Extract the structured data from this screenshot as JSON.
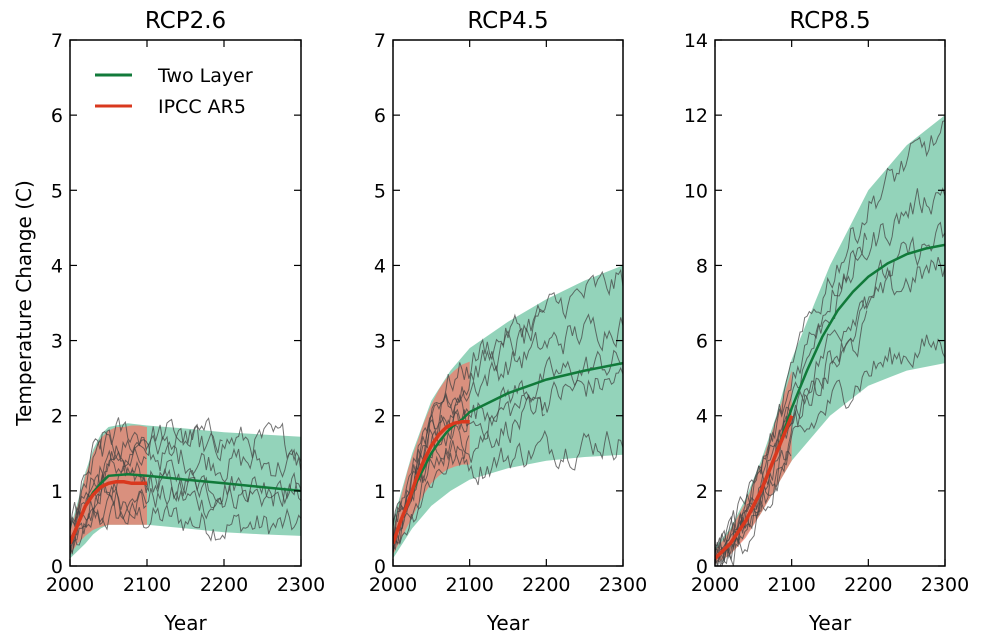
{
  "figure": {
    "ylabel": "Temperature Change (C)",
    "legend": {
      "placement": "upper-left of first panel",
      "items": [
        {
          "label": "Two Layer",
          "color": "#117a3a"
        },
        {
          "label": "IPCC AR5",
          "color": "#d9381e"
        }
      ]
    }
  },
  "colors": {
    "two_layer_line": "#117a3a",
    "two_layer_band": "#3aae82",
    "ipcc_line": "#d9381e",
    "ipcc_band": "#f07a6a",
    "model_runs": "#444444"
  },
  "chart_data": [
    {
      "type": "line",
      "title": "RCP2.6",
      "xlabel": "Year",
      "ylabel": "Temperature Change (C)",
      "xlim": [
        2000,
        2300
      ],
      "ylim": [
        0,
        7
      ],
      "xticks": [
        2000,
        2100,
        2200,
        2300
      ],
      "yticks": [
        0,
        1,
        2,
        3,
        4,
        5,
        6,
        7
      ],
      "series": [
        {
          "name": "Two Layer",
          "kind": "line",
          "x": [
            2000,
            2010,
            2020,
            2030,
            2040,
            2050,
            2075,
            2100,
            2150,
            2200,
            2250,
            2300
          ],
          "y": [
            0.3,
            0.55,
            0.8,
            0.98,
            1.1,
            1.2,
            1.22,
            1.2,
            1.15,
            1.1,
            1.05,
            1.0
          ]
        },
        {
          "name": "Two Layer",
          "kind": "band",
          "x": [
            2000,
            2010,
            2020,
            2030,
            2040,
            2050,
            2075,
            2100,
            2150,
            2200,
            2250,
            2300
          ],
          "lower": [
            0.1,
            0.2,
            0.3,
            0.42,
            0.5,
            0.55,
            0.55,
            0.55,
            0.5,
            0.45,
            0.42,
            0.4
          ],
          "upper": [
            0.5,
            0.85,
            1.25,
            1.55,
            1.75,
            1.85,
            1.9,
            1.87,
            1.83,
            1.78,
            1.75,
            1.72
          ]
        },
        {
          "name": "IPCC AR5",
          "kind": "line",
          "x": [
            2000,
            2010,
            2020,
            2030,
            2040,
            2050,
            2060,
            2070,
            2080,
            2090,
            2100
          ],
          "y": [
            0.3,
            0.55,
            0.8,
            0.95,
            1.05,
            1.1,
            1.12,
            1.12,
            1.1,
            1.1,
            1.1
          ]
        },
        {
          "name": "IPCC AR5",
          "kind": "band",
          "x": [
            2000,
            2010,
            2020,
            2030,
            2040,
            2050,
            2060,
            2070,
            2080,
            2090,
            2100
          ],
          "lower": [
            0.15,
            0.3,
            0.4,
            0.48,
            0.52,
            0.55,
            0.55,
            0.55,
            0.55,
            0.55,
            0.55
          ],
          "upper": [
            0.45,
            0.8,
            1.2,
            1.5,
            1.7,
            1.8,
            1.85,
            1.85,
            1.87,
            1.87,
            1.85
          ]
        }
      ]
    },
    {
      "type": "line",
      "title": "RCP4.5",
      "xlabel": "Year",
      "xlim": [
        2000,
        2300
      ],
      "ylim": [
        0,
        7
      ],
      "xticks": [
        2000,
        2100,
        2200,
        2300
      ],
      "yticks": [
        0,
        1,
        2,
        3,
        4,
        5,
        6,
        7
      ],
      "series": [
        {
          "name": "Two Layer",
          "kind": "line",
          "x": [
            2000,
            2010,
            2020,
            2030,
            2040,
            2050,
            2060,
            2070,
            2080,
            2090,
            2100,
            2150,
            2200,
            2250,
            2300
          ],
          "y": [
            0.3,
            0.6,
            0.85,
            1.1,
            1.3,
            1.5,
            1.65,
            1.78,
            1.88,
            1.95,
            2.05,
            2.3,
            2.48,
            2.6,
            2.7
          ]
        },
        {
          "name": "Two Layer",
          "kind": "band",
          "x": [
            2000,
            2025,
            2050,
            2075,
            2100,
            2150,
            2200,
            2250,
            2300
          ],
          "lower": [
            0.1,
            0.5,
            0.8,
            1.0,
            1.15,
            1.3,
            1.4,
            1.45,
            1.48
          ],
          "upper": [
            0.6,
            1.5,
            2.2,
            2.6,
            2.9,
            3.25,
            3.55,
            3.8,
            4.0
          ]
        },
        {
          "name": "IPCC AR5",
          "kind": "line",
          "x": [
            2000,
            2010,
            2020,
            2030,
            2040,
            2050,
            2060,
            2070,
            2080,
            2090,
            2100
          ],
          "y": [
            0.3,
            0.6,
            0.85,
            1.15,
            1.4,
            1.6,
            1.75,
            1.85,
            1.9,
            1.92,
            1.92
          ]
        },
        {
          "name": "IPCC AR5",
          "kind": "band",
          "x": [
            2000,
            2010,
            2020,
            2030,
            2040,
            2050,
            2060,
            2070,
            2080,
            2090,
            2100
          ],
          "lower": [
            0.15,
            0.35,
            0.55,
            0.75,
            0.95,
            1.1,
            1.2,
            1.28,
            1.32,
            1.35,
            1.35
          ],
          "upper": [
            0.45,
            0.9,
            1.3,
            1.6,
            1.9,
            2.15,
            2.35,
            2.5,
            2.6,
            2.68,
            2.72
          ]
        }
      ]
    },
    {
      "type": "line",
      "title": "RCP8.5",
      "xlabel": "Year",
      "xlim": [
        2000,
        2300
      ],
      "ylim": [
        0,
        14
      ],
      "xticks": [
        2000,
        2100,
        2200,
        2300
      ],
      "yticks": [
        0,
        2,
        4,
        6,
        8,
        10,
        12,
        14
      ],
      "series": [
        {
          "name": "Two Layer",
          "kind": "line",
          "x": [
            2000,
            2020,
            2040,
            2060,
            2080,
            2100,
            2120,
            2140,
            2160,
            2180,
            2200,
            2225,
            2250,
            2275,
            2300
          ],
          "y": [
            0.2,
            0.6,
            1.2,
            2.0,
            3.0,
            4.2,
            5.2,
            6.1,
            6.8,
            7.3,
            7.7,
            8.05,
            8.3,
            8.45,
            8.55
          ]
        },
        {
          "name": "Two Layer",
          "kind": "band",
          "x": [
            2000,
            2020,
            2040,
            2060,
            2080,
            2100,
            2150,
            2200,
            2250,
            2300
          ],
          "lower": [
            0.05,
            0.3,
            0.8,
            1.4,
            2.1,
            2.8,
            4.0,
            4.8,
            5.2,
            5.4
          ],
          "upper": [
            0.5,
            1.0,
            1.8,
            2.8,
            4.0,
            5.5,
            8.0,
            10.0,
            11.2,
            12.0
          ]
        },
        {
          "name": "IPCC AR5",
          "kind": "line",
          "x": [
            2000,
            2020,
            2040,
            2060,
            2080,
            2100
          ],
          "y": [
            0.2,
            0.6,
            1.2,
            2.0,
            3.0,
            4.0
          ]
        },
        {
          "name": "IPCC AR5",
          "kind": "band",
          "x": [
            2000,
            2020,
            2040,
            2060,
            2080,
            2100
          ],
          "lower": [
            0.05,
            0.3,
            0.75,
            1.4,
            2.1,
            2.8
          ],
          "upper": [
            0.4,
            0.95,
            1.7,
            2.7,
            3.9,
            5.2
          ]
        }
      ]
    }
  ]
}
